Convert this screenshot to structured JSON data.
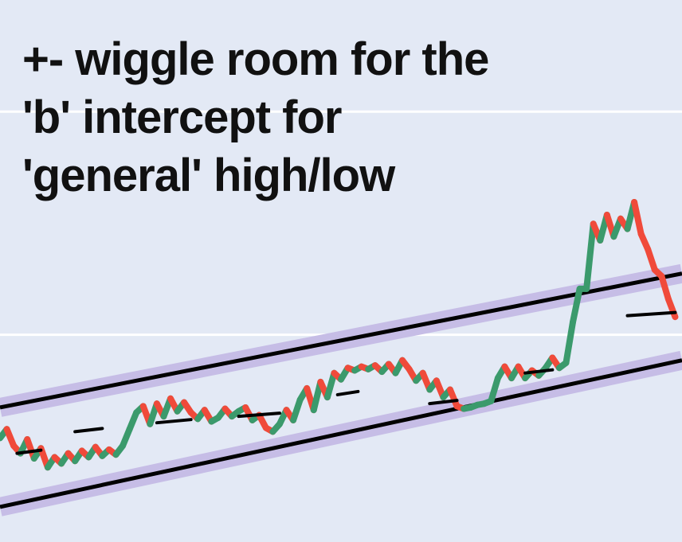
{
  "chart_data": {
    "type": "line",
    "title": "",
    "xlabel": "",
    "ylabel": "",
    "grid": true,
    "annotation": [
      "+- wiggle room for the",
      "'b' intercept for",
      "'general' high/low"
    ],
    "price_series": [
      {
        "x": 0,
        "y": 27.6
      },
      {
        "x": 2,
        "y": 30.4
      },
      {
        "x": 4,
        "y": 25.2
      },
      {
        "x": 6,
        "y": 22.8
      },
      {
        "x": 8,
        "y": 27.2
      },
      {
        "x": 10,
        "y": 21.2
      },
      {
        "x": 12,
        "y": 24.4
      },
      {
        "x": 14,
        "y": 18.4
      },
      {
        "x": 16,
        "y": 21.6
      },
      {
        "x": 18,
        "y": 19.6
      },
      {
        "x": 20,
        "y": 22.8
      },
      {
        "x": 22,
        "y": 20.4
      },
      {
        "x": 24,
        "y": 23.6
      },
      {
        "x": 26,
        "y": 21.6
      },
      {
        "x": 28,
        "y": 24.8
      },
      {
        "x": 30,
        "y": 22.0
      },
      {
        "x": 32,
        "y": 24.0
      },
      {
        "x": 34,
        "y": 22.4
      },
      {
        "x": 36,
        "y": 25.2
      },
      {
        "x": 38,
        "y": 30.4
      },
      {
        "x": 40,
        "y": 35.6
      },
      {
        "x": 42,
        "y": 37.6
      },
      {
        "x": 44,
        "y": 32.0
      },
      {
        "x": 46,
        "y": 38.4
      },
      {
        "x": 48,
        "y": 34.4
      },
      {
        "x": 50,
        "y": 40.0
      },
      {
        "x": 52,
        "y": 36.0
      },
      {
        "x": 54,
        "y": 38.8
      },
      {
        "x": 56,
        "y": 35.6
      },
      {
        "x": 58,
        "y": 33.6
      },
      {
        "x": 60,
        "y": 36.4
      },
      {
        "x": 62,
        "y": 32.8
      },
      {
        "x": 64,
        "y": 34.0
      },
      {
        "x": 66,
        "y": 36.8
      },
      {
        "x": 68,
        "y": 34.4
      },
      {
        "x": 70,
        "y": 36.0
      },
      {
        "x": 72,
        "y": 37.2
      },
      {
        "x": 74,
        "y": 33.2
      },
      {
        "x": 76,
        "y": 34.8
      },
      {
        "x": 78,
        "y": 30.8
      },
      {
        "x": 80,
        "y": 29.6
      },
      {
        "x": 82,
        "y": 32.0
      },
      {
        "x": 84,
        "y": 36.4
      },
      {
        "x": 86,
        "y": 33.2
      },
      {
        "x": 88,
        "y": 39.6
      },
      {
        "x": 90,
        "y": 43.2
      },
      {
        "x": 92,
        "y": 36.4
      },
      {
        "x": 94,
        "y": 45.2
      },
      {
        "x": 96,
        "y": 40.4
      },
      {
        "x": 98,
        "y": 48.0
      },
      {
        "x": 100,
        "y": 46.0
      },
      {
        "x": 102,
        "y": 49.6
      },
      {
        "x": 104,
        "y": 48.8
      },
      {
        "x": 106,
        "y": 50.0
      },
      {
        "x": 108,
        "y": 49.2
      },
      {
        "x": 110,
        "y": 50.4
      },
      {
        "x": 112,
        "y": 48.4
      },
      {
        "x": 114,
        "y": 50.8
      },
      {
        "x": 116,
        "y": 48.0
      },
      {
        "x": 118,
        "y": 52.0
      },
      {
        "x": 120,
        "y": 49.2
      },
      {
        "x": 122,
        "y": 45.6
      },
      {
        "x": 124,
        "y": 48.0
      },
      {
        "x": 126,
        "y": 42.8
      },
      {
        "x": 128,
        "y": 45.6
      },
      {
        "x": 130,
        "y": 40.4
      },
      {
        "x": 132,
        "y": 42.8
      },
      {
        "x": 134,
        "y": 37.6
      },
      {
        "x": 136,
        "y": 36.8
      },
      {
        "x": 138,
        "y": 37.2
      },
      {
        "x": 140,
        "y": 38.0
      },
      {
        "x": 142,
        "y": 38.4
      },
      {
        "x": 144,
        "y": 39.2
      },
      {
        "x": 146,
        "y": 46.4
      },
      {
        "x": 148,
        "y": 50.0
      },
      {
        "x": 150,
        "y": 46.4
      },
      {
        "x": 152,
        "y": 50.0
      },
      {
        "x": 154,
        "y": 46.4
      },
      {
        "x": 156,
        "y": 48.8
      },
      {
        "x": 158,
        "y": 47.2
      },
      {
        "x": 160,
        "y": 49.6
      },
      {
        "x": 162,
        "y": 52.8
      },
      {
        "x": 164,
        "y": 49.6
      },
      {
        "x": 166,
        "y": 51.2
      },
      {
        "x": 168,
        "y": 64.0
      },
      {
        "x": 170,
        "y": 74.4
      },
      {
        "x": 172,
        "y": 74.4
      },
      {
        "x": 174,
        "y": 94.8
      },
      {
        "x": 176,
        "y": 89.6
      },
      {
        "x": 178,
        "y": 97.6
      },
      {
        "x": 180,
        "y": 90.8
      },
      {
        "x": 182,
        "y": 96.4
      },
      {
        "x": 184,
        "y": 93.2
      },
      {
        "x": 186,
        "y": 101.6
      },
      {
        "x": 188,
        "y": 91.6
      },
      {
        "x": 190,
        "y": 86.8
      },
      {
        "x": 192,
        "y": 80.4
      },
      {
        "x": 194,
        "y": 78.4
      },
      {
        "x": 196,
        "y": 71.2
      },
      {
        "x": 198,
        "y": 65.6
      }
    ],
    "upper_channel_line": {
      "x": [
        0,
        200
      ],
      "y": [
        37.2,
        79.2
      ]
    },
    "lower_channel_line": {
      "x": [
        0,
        200
      ],
      "y": [
        6.0,
        52.0
      ]
    },
    "wiggle_room_offset": 2.0,
    "local_levels": [
      {
        "x": [
          5,
          12
        ],
        "y": 22.8
      },
      {
        "x": [
          22,
          30
        ],
        "y": 29.6
      },
      {
        "x": [
          46,
          56
        ],
        "y": 32.4
      },
      {
        "x": [
          70,
          82
        ],
        "y": 34.4
      },
      {
        "x": [
          99,
          105
        ],
        "y": 41.2
      },
      {
        "x": [
          126,
          134
        ],
        "y": 38.4
      },
      {
        "x": [
          154,
          162
        ],
        "y": 48.0
      },
      {
        "x": [
          184,
          198
        ],
        "y": 66.0
      }
    ],
    "gridline_values": [
      60,
      130
    ],
    "xlim": [
      0,
      200
    ],
    "ylim": [
      -5,
      165
    ],
    "colors": {
      "background": "#e3e9f5",
      "gridline": "#ffffff",
      "up": "#3b9a6c",
      "down": "#f04a3a",
      "channel_band": "#c6bde6",
      "channel_line": "#000000",
      "level_marker": "#000000",
      "annotation_text": "#111111"
    }
  }
}
